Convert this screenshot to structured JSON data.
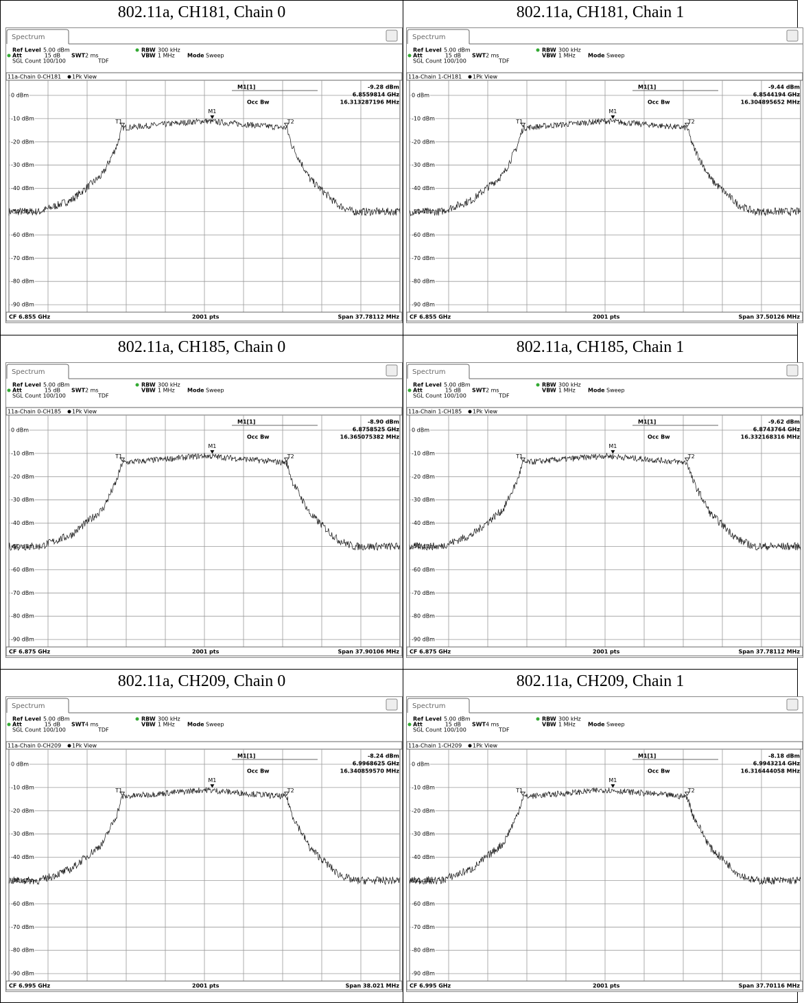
{
  "labels": {
    "tab": "Spectrum",
    "ref_level": "Ref Level",
    "ref_value": "5.00 dBm",
    "att": "Att",
    "att_value": "15 dB",
    "swt": "SWT",
    "rbw": "RBW",
    "rbw_value": "300 kHz",
    "vbw": "VBW",
    "vbw_value": "1 MHz",
    "mode": "Mode",
    "mode_value": "Sweep",
    "sgl": "SGL Count 100/100",
    "tdf": "TDF",
    "view": "1Pk View",
    "marker": "M1[1]",
    "occ": "Occ Bw",
    "pts": "2001 pts",
    "m1": "M1",
    "t1": "T1",
    "t2": "T2",
    "y_labels": [
      "0 dBm",
      "-10 dBm",
      "-20 dBm",
      "-30 dBm",
      "-40 dBm",
      "-50 dBm",
      "-60 dBm",
      "-70 dBm",
      "-80 dBm",
      "-90 dBm"
    ]
  },
  "panels": [
    {
      "heading": "802.11a, CH181, Chain 0",
      "swt": "2 ms",
      "trace_name": "11a-Chain 0-CH181",
      "level": "-9.28 dBm",
      "freq": "6.8559814 GHz",
      "occ_bw": "16.313287196 MHz",
      "cf": "CF 6.855 GHz",
      "span": "Span 37.78112 MHz"
    },
    {
      "heading": "802.11a, CH181, Chain 1",
      "swt": "2 ms",
      "trace_name": "11a-Chain 1-CH181",
      "level": "-9.44 dBm",
      "freq": "6.8544194 GHz",
      "occ_bw": "16.304895652 MHz",
      "cf": "CF 6.855 GHz",
      "span": "Span 37.50126 MHz"
    },
    {
      "heading": "802.11a, CH185, Chain 0",
      "swt": "2 ms",
      "trace_name": "11a-Chain 0-CH185",
      "level": "-8.90 dBm",
      "freq": "6.8758525 GHz",
      "occ_bw": "16.365075382 MHz",
      "cf": "CF 6.875 GHz",
      "span": "Span 37.90106 MHz"
    },
    {
      "heading": "802.11a, CH185, Chain 1",
      "swt": "2 ms",
      "trace_name": "11a-Chain 1-CH185",
      "level": "-9.62 dBm",
      "freq": "6.8743764 GHz",
      "occ_bw": "16.332168316 MHz",
      "cf": "CF 6.875 GHz",
      "span": "Span 37.78112 MHz"
    },
    {
      "heading": "802.11a, CH209, Chain 0",
      "swt": "4 ms",
      "trace_name": "11a-Chain 0-CH209",
      "level": "-8.24 dBm",
      "freq": "6.9968625 GHz",
      "occ_bw": "16.340859570 MHz",
      "cf": "CF 6.995 GHz",
      "span": "Span 38.021 MHz"
    },
    {
      "heading": "802.11a, CH209, Chain 1",
      "swt": "4 ms",
      "trace_name": "11a-Chain 1-CH209",
      "level": "-8.18 dBm",
      "freq": "6.9943214 GHz",
      "occ_bw": "16.316444058 MHz",
      "cf": "CF 6.995 GHz",
      "span": "Span 37.70116 MHz"
    }
  ]
}
